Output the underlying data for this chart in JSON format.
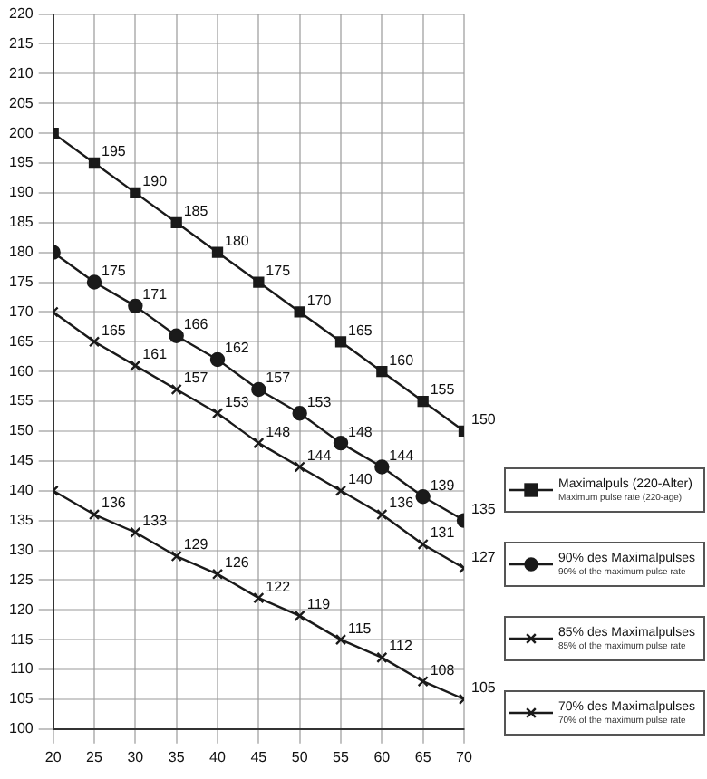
{
  "chart_data": {
    "type": "line",
    "x": [
      20,
      25,
      30,
      35,
      40,
      45,
      50,
      55,
      60,
      65,
      70
    ],
    "xlim": [
      20,
      70
    ],
    "xticks": [
      20,
      25,
      30,
      35,
      40,
      45,
      50,
      55,
      60,
      65,
      70
    ],
    "ylim": [
      100,
      220
    ],
    "yticks": [
      100,
      105,
      110,
      115,
      120,
      125,
      130,
      135,
      140,
      145,
      150,
      155,
      160,
      165,
      170,
      175,
      180,
      185,
      190,
      195,
      200,
      205,
      210,
      215,
      220
    ],
    "grid": true,
    "legend": "right",
    "series": [
      {
        "name": "Maximalpuls (220-Alter)\nMaximum pulse rate (220-age)",
        "color": "#1a1a1a",
        "marker": "square",
        "values": [
          200,
          195,
          190,
          185,
          180,
          175,
          170,
          165,
          160,
          155,
          150
        ],
        "value_labels": [
          null,
          "195",
          "190",
          "185",
          "180",
          "175",
          "170",
          "165",
          "160",
          "155",
          "150"
        ]
      },
      {
        "name": "90% des Maximalpulses\n90% of the maximum pulse rate",
        "color": "#1a1a1a",
        "marker": "circle",
        "values": [
          180,
          175,
          171,
          166,
          162,
          157,
          153,
          148,
          144,
          139,
          135
        ],
        "value_labels": [
          null,
          "175",
          "171",
          "166",
          "162",
          "157",
          "153",
          "148",
          "144",
          "139",
          "135"
        ]
      },
      {
        "name": "85% des Maximalpulses\n85% of the maximum pulse rate",
        "color": "#1a1a1a",
        "marker": "cross",
        "values": [
          170,
          165,
          161,
          157,
          153,
          148,
          144,
          140,
          136,
          131,
          127
        ],
        "value_labels": [
          null,
          "165",
          "161",
          "157",
          "153",
          "148",
          "144",
          "140",
          "136",
          "131",
          "127"
        ]
      },
      {
        "name": "70% des Maximalpulses\n70% of the maximum pulse rate",
        "color": "#1a1a1a",
        "marker": "cross",
        "values": [
          140,
          136,
          133,
          129,
          126,
          122,
          119,
          115,
          112,
          108,
          105
        ],
        "value_labels": [
          null,
          "136",
          "133",
          "129",
          "126",
          "122",
          "119",
          "115",
          "112",
          "108",
          "105"
        ]
      }
    ]
  }
}
